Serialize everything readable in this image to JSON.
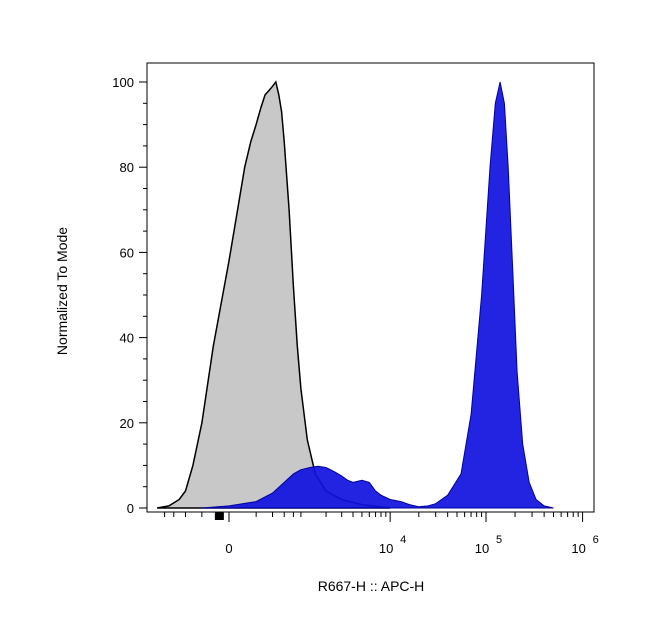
{
  "chart_data": {
    "type": "area",
    "xlabel": "R667-H :: APC-H",
    "ylabel": "Normalized To Mode",
    "ylim": [
      0,
      100
    ],
    "y_ticks": [
      "0",
      "20",
      "40",
      "60",
      "80",
      "100"
    ],
    "x_scale": "biexponential",
    "x_ticks": [
      {
        "label": "0",
        "exp": ""
      },
      {
        "label": "10",
        "exp": "4"
      },
      {
        "label": "10",
        "exp": "5"
      },
      {
        "label": "10",
        "exp": "6"
      }
    ],
    "grid": false,
    "legend": "none",
    "series": [
      {
        "color": "#c8c8c8",
        "stroke": "#000000",
        "points": [
          [
            -1000,
            0
          ],
          [
            -700,
            0.5
          ],
          [
            -500,
            2
          ],
          [
            -400,
            4
          ],
          [
            -300,
            10
          ],
          [
            -200,
            20
          ],
          [
            -100,
            38
          ],
          [
            0,
            58
          ],
          [
            50,
            70
          ],
          [
            100,
            80
          ],
          [
            150,
            86
          ],
          [
            200,
            90
          ],
          [
            250,
            94
          ],
          [
            300,
            97
          ],
          [
            350,
            98
          ],
          [
            400,
            99
          ],
          [
            450,
            100
          ],
          [
            500,
            97
          ],
          [
            550,
            93
          ],
          [
            600,
            86
          ],
          [
            700,
            70
          ],
          [
            800,
            52
          ],
          [
            900,
            38
          ],
          [
            1000,
            28
          ],
          [
            1200,
            16
          ],
          [
            1500,
            8
          ],
          [
            2000,
            4
          ],
          [
            3000,
            2
          ],
          [
            5000,
            0.8
          ],
          [
            10000,
            0
          ]
        ]
      },
      {
        "color": "#1010e0",
        "stroke": "#0000a0",
        "points": [
          [
            -200,
            0
          ],
          [
            0,
            0.5
          ],
          [
            200,
            1.5
          ],
          [
            400,
            3.5
          ],
          [
            600,
            6
          ],
          [
            800,
            8
          ],
          [
            1000,
            9
          ],
          [
            1300,
            9.5
          ],
          [
            1600,
            9.8
          ],
          [
            2000,
            9.5
          ],
          [
            2500,
            8.5
          ],
          [
            3000,
            7.5
          ],
          [
            3500,
            6.5
          ],
          [
            4000,
            6
          ],
          [
            5000,
            6.5
          ],
          [
            6000,
            6
          ],
          [
            7000,
            4
          ],
          [
            8000,
            3
          ],
          [
            10000,
            2
          ],
          [
            13000,
            1.5
          ],
          [
            16000,
            0.8
          ],
          [
            20000,
            0.3
          ],
          [
            25000,
            0.5
          ],
          [
            30000,
            1
          ],
          [
            40000,
            3
          ],
          [
            55000,
            8
          ],
          [
            70000,
            22
          ],
          [
            90000,
            50
          ],
          [
            110000,
            80
          ],
          [
            125000,
            95
          ],
          [
            140000,
            100
          ],
          [
            155000,
            95
          ],
          [
            170000,
            80
          ],
          [
            190000,
            55
          ],
          [
            210000,
            32
          ],
          [
            240000,
            15
          ],
          [
            280000,
            6
          ],
          [
            330000,
            2
          ],
          [
            400000,
            0.5
          ],
          [
            500000,
            0
          ]
        ]
      }
    ]
  }
}
